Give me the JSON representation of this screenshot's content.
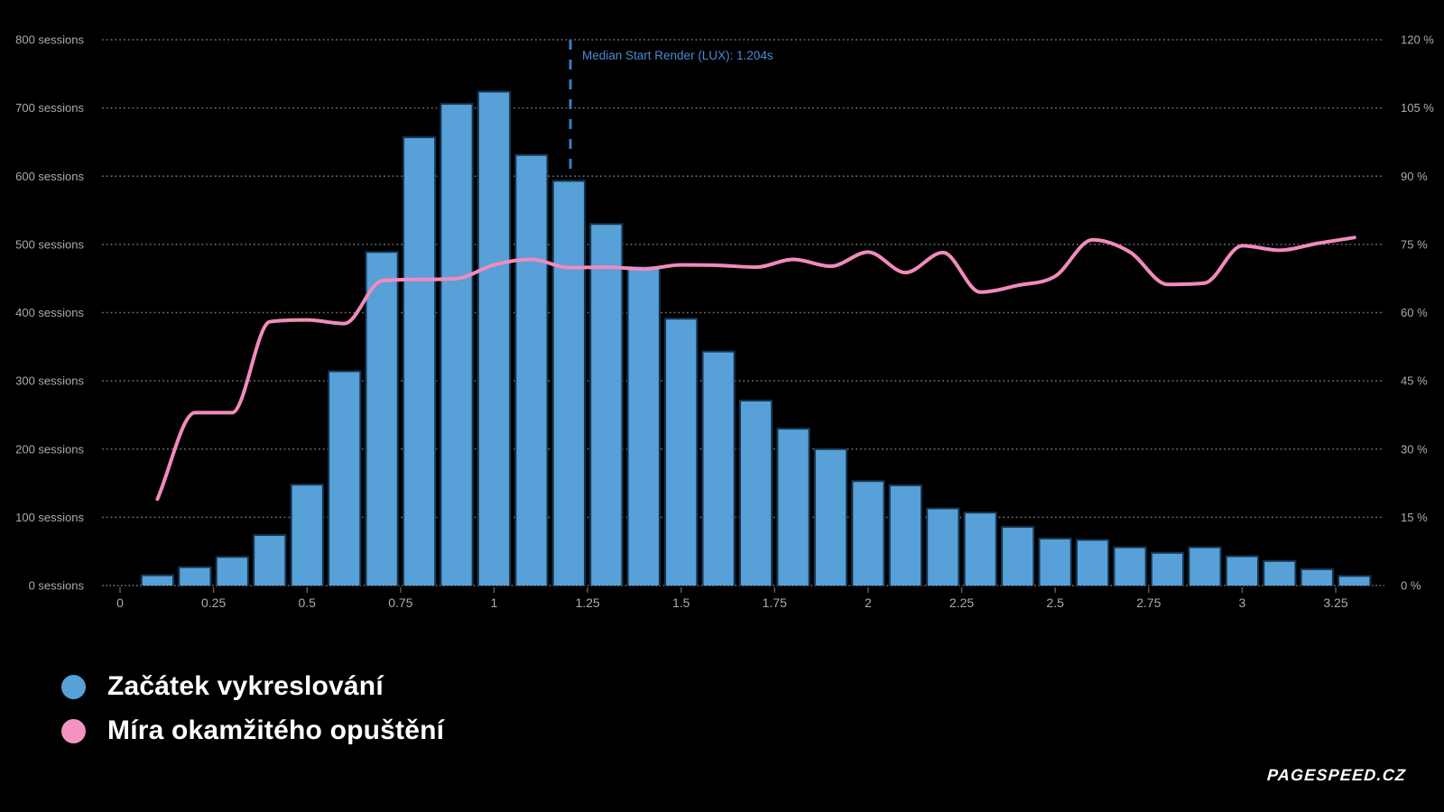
{
  "chart_data": {
    "type": "bar+line",
    "title": "",
    "x_unit": "s",
    "bin_width": 0.1,
    "x": [
      0.1,
      0.2,
      0.3,
      0.4,
      0.5,
      0.6,
      0.7,
      0.8,
      0.9,
      1.0,
      1.1,
      1.2,
      1.3,
      1.4,
      1.5,
      1.6,
      1.7,
      1.8,
      1.9,
      2.0,
      2.1,
      2.2,
      2.3,
      2.4,
      2.5,
      2.6,
      2.7,
      2.8,
      2.9,
      3.0,
      3.1,
      3.2,
      3.3
    ],
    "series": [
      {
        "name": "Začátek vykreslování",
        "type": "bar",
        "y_axis": "left",
        "unit": "sessions",
        "color": "#57a0d8",
        "border_color": "#16344f",
        "values": [
          15,
          27,
          42,
          74,
          148,
          314,
          489,
          657,
          706,
          724,
          631,
          593,
          530,
          467,
          391,
          343,
          271,
          230,
          200,
          153,
          147,
          113,
          107,
          86,
          69,
          67,
          56,
          48,
          56,
          43,
          36,
          24,
          14
        ]
      },
      {
        "name": "Míra okamžitého opuštění",
        "type": "line",
        "y_axis": "right",
        "unit": "%",
        "color": "#f18bbc",
        "values": [
          19,
          38,
          38,
          58,
          58.4,
          57.6,
          67,
          67.3,
          67.5,
          70.5,
          71.7,
          69.9,
          70,
          69.6,
          70.5,
          70.4,
          70,
          71.7,
          70.2,
          73.3,
          68.8,
          73.2,
          64.5,
          66,
          68,
          76,
          73.3,
          66.2,
          66.5,
          74.7,
          73.7,
          75.2,
          76.5
        ]
      }
    ],
    "left_axis": {
      "min": 0,
      "max": 800,
      "tick_step": 100,
      "tick_labels": [
        "0 sessions",
        "100 sessions",
        "200 sessions",
        "300 sessions",
        "400 sessions",
        "500 sessions",
        "600 sessions",
        "700 sessions",
        "800 sessions"
      ]
    },
    "right_axis": {
      "min": 0,
      "max": 120,
      "tick_step": 15,
      "tick_labels": [
        "0 %",
        "15 %",
        "30 %",
        "45 %",
        "60 %",
        "75 %",
        "90 %",
        "105 %",
        "120 %"
      ]
    },
    "x_axis": {
      "tick_values": [
        0,
        0.25,
        0.5,
        0.75,
        1,
        1.25,
        1.5,
        1.75,
        2,
        2.25,
        2.5,
        2.75,
        3,
        3.25
      ],
      "tick_labels": [
        "0",
        "0.25",
        "0.5",
        "0.75",
        "1",
        "1.25",
        "1.5",
        "1.75",
        "2",
        "2.25",
        "2.5",
        "2.75",
        "3",
        "3.25"
      ]
    },
    "annotation": {
      "label": "Median Start Render (LUX): 1.204s",
      "x_value": 1.204,
      "line_color": "#3d7bbe",
      "text_color": "#4a8bd0"
    },
    "grid": {
      "on": true,
      "style": "dotted",
      "color": "#6e6e6e"
    },
    "legend_position": "bottom-left"
  },
  "legend": {
    "items": [
      {
        "label": "Začátek vykreslování",
        "color": "#57a0d8"
      },
      {
        "label": "Míra okamžitého opuštění",
        "color": "#f492c4"
      }
    ]
  },
  "branding": {
    "logo_text": "PAGESPEED.CZ"
  },
  "colors": {
    "background": "#000000",
    "axis_text": "#ababab",
    "bar_fill": "#57a0d8",
    "line_pink": "#f18bbc"
  }
}
